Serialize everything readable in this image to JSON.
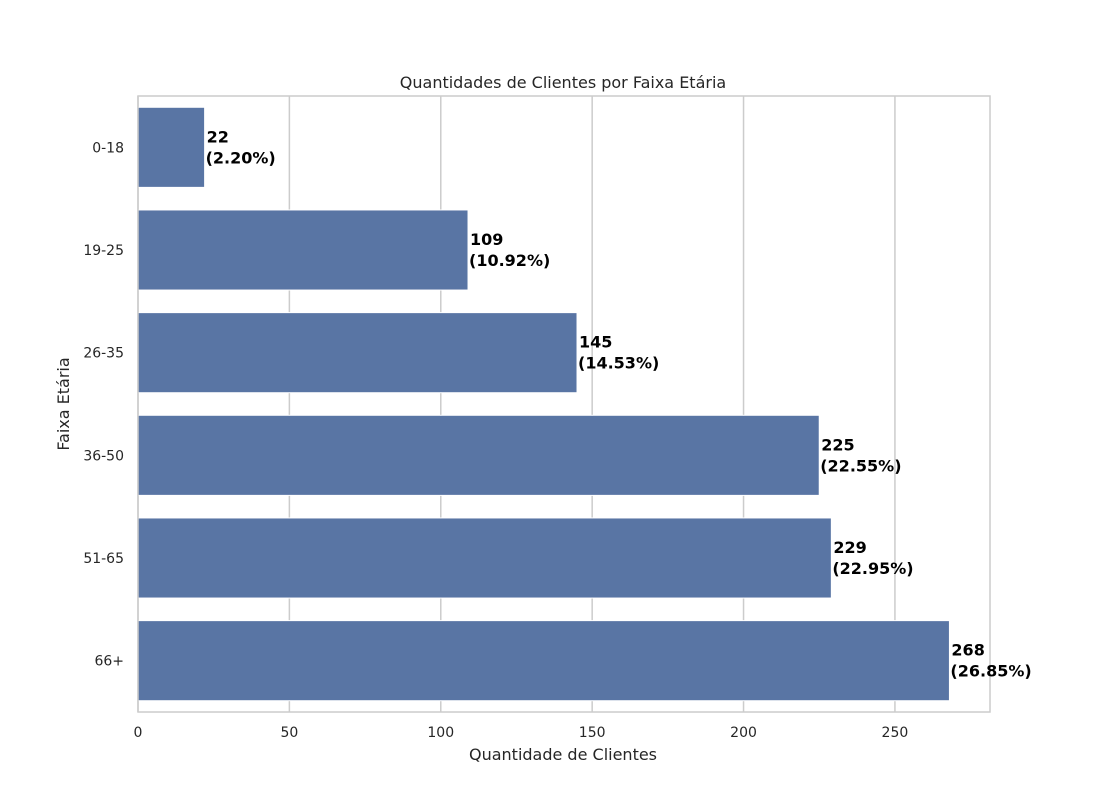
{
  "chart_data": {
    "type": "bar",
    "orientation": "horizontal",
    "title": "Quantidades de Clientes por Faixa Etária",
    "xlabel": "Quantidade de Clientes",
    "ylabel": "Faixa Etária",
    "categories": [
      "0-18",
      "19-25",
      "26-35",
      "36-50",
      "51-65",
      "66+"
    ],
    "values": [
      22,
      109,
      145,
      225,
      229,
      268
    ],
    "value_labels": [
      "22",
      "109",
      "145",
      "225",
      "229",
      "268"
    ],
    "percent_labels": [
      "(2.20%)",
      "(10.92%)",
      "(14.53%)",
      "(22.55%)",
      "(22.95%)",
      "(26.85%)"
    ],
    "xlim": [
      0,
      281.4
    ],
    "xticks": [
      0,
      50,
      100,
      150,
      200,
      250
    ],
    "xtick_labels": [
      "0",
      "50",
      "100",
      "150",
      "200",
      "250"
    ],
    "grid": "vertical",
    "colors": {
      "bar": "#5975a4",
      "grid": "#cccccc",
      "frame": "#cccccc"
    }
  }
}
